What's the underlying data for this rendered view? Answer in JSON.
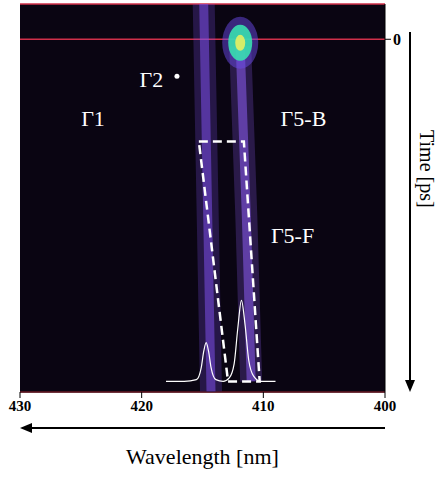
{
  "chart_data": {
    "type": "line",
    "xlabel": "Wavelength [nm]",
    "ylabel": "Time [ps]",
    "xlim": [
      430,
      400
    ],
    "xticks": [
      430,
      420,
      410,
      400
    ],
    "ylim": [
      100,
      -10
    ],
    "yticks": [
      0
    ],
    "grid": true,
    "series": [
      {
        "type": "streak",
        "color": "#7b4fe8",
        "x": [
          414.9,
          414.6,
          414.3
        ],
        "values": [
          -10,
          45,
          100
        ]
      },
      {
        "type": "streak",
        "color": "#8a5cf0",
        "x": [
          411.9,
          411.4,
          411.0
        ],
        "values": [
          2,
          50,
          97
        ]
      },
      {
        "type": "scatter",
        "marker": "ellipse",
        "color": "#38e0b0",
        "x": [
          411.9
        ],
        "values": [
          1
        ]
      },
      {
        "type": "scatter",
        "marker": "circle",
        "color": "#ffffff",
        "x": [
          417.1
        ],
        "values": [
          10.5
        ]
      },
      {
        "type": "line",
        "line_style": "dashed",
        "color": "#ffffff",
        "x": [
          415.3,
          411.6,
          410.3,
          412.9,
          415.3
        ],
        "values": [
          29,
          29,
          97,
          97,
          29
        ]
      },
      {
        "type": "line",
        "line_style": "solid",
        "color": "#ffffff",
        "x": [
          418,
          416.5,
          415.5,
          415.1,
          414.9,
          414.7,
          414.5,
          414.3,
          413.9,
          413.3,
          412.8,
          412.4,
          412.1,
          411.8,
          411.5,
          411.2,
          410.8,
          410.2,
          409
        ],
        "values": [
          97,
          97,
          96.5,
          93,
          88.5,
          86,
          88.5,
          93,
          96.5,
          97,
          96,
          92,
          82,
          74,
          81,
          91,
          95.5,
          97,
          97
        ]
      }
    ],
    "annotations": [
      {
        "text": "Γ1",
        "x": 424,
        "y": 22.6
      },
      {
        "text": "Γ2",
        "x": 419.2,
        "y": 11.3
      },
      {
        "text": "Γ5-B",
        "x": 406.7,
        "y": 22.6
      },
      {
        "text": "Γ5-F",
        "x": 407.6,
        "y": 55.6
      }
    ]
  }
}
